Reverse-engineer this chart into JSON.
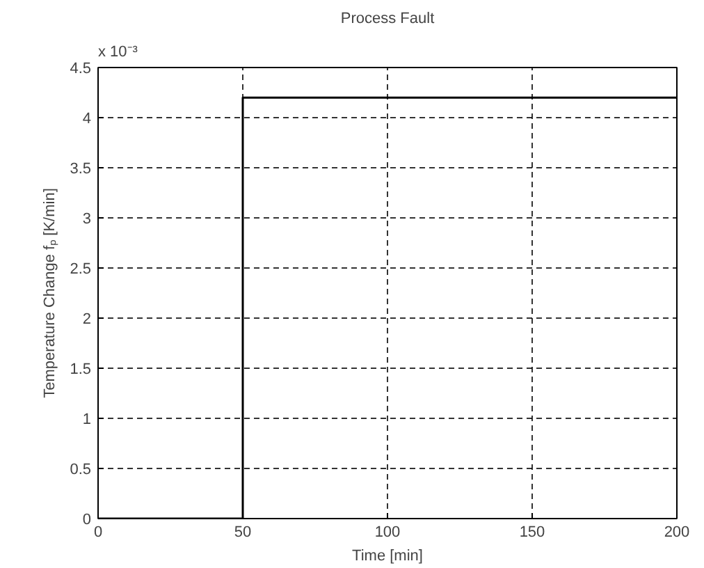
{
  "chart_data": {
    "type": "step",
    "title": "Process Fault",
    "xlabel": "Time [min]",
    "ylabel": "Temperature Change fₚ [K/min]",
    "x": [
      0,
      50,
      200
    ],
    "values": [
      0,
      4.2,
      4.2
    ],
    "color": "#000000",
    "xlim": [
      0,
      200
    ],
    "xticks": [
      0,
      50,
      100,
      150,
      200
    ],
    "ylim": [
      0,
      4.5
    ],
    "yticks": [
      0,
      0.5,
      1,
      1.5,
      2,
      2.5,
      3,
      3.5,
      4,
      4.5
    ],
    "grid": true,
    "line_style": "solid",
    "annotations": [
      "x 10⁻³"
    ]
  }
}
